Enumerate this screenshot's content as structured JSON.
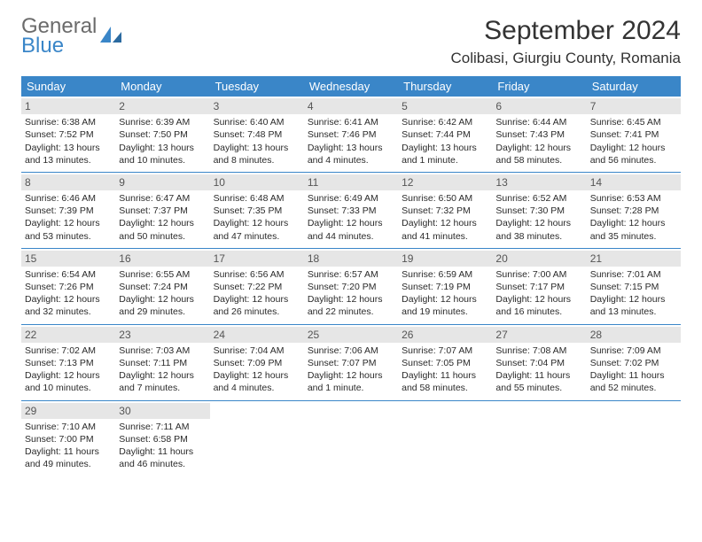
{
  "brand": {
    "line1": "General",
    "line2": "Blue"
  },
  "title": "September 2024",
  "location": "Colibasi, Giurgiu County, Romania",
  "colors": {
    "header_bg": "#3a86c8",
    "header_text": "#ffffff",
    "daynum_bg": "#e6e6e6",
    "week_divider": "#3a86c8",
    "brand_gray": "#6b6b6b",
    "brand_blue": "#3a86c8"
  },
  "dow": [
    "Sunday",
    "Monday",
    "Tuesday",
    "Wednesday",
    "Thursday",
    "Friday",
    "Saturday"
  ],
  "weeks": [
    [
      {
        "n": "1",
        "sr": "Sunrise: 6:38 AM",
        "ss": "Sunset: 7:52 PM",
        "d1": "Daylight: 13 hours",
        "d2": "and 13 minutes."
      },
      {
        "n": "2",
        "sr": "Sunrise: 6:39 AM",
        "ss": "Sunset: 7:50 PM",
        "d1": "Daylight: 13 hours",
        "d2": "and 10 minutes."
      },
      {
        "n": "3",
        "sr": "Sunrise: 6:40 AM",
        "ss": "Sunset: 7:48 PM",
        "d1": "Daylight: 13 hours",
        "d2": "and 8 minutes."
      },
      {
        "n": "4",
        "sr": "Sunrise: 6:41 AM",
        "ss": "Sunset: 7:46 PM",
        "d1": "Daylight: 13 hours",
        "d2": "and 4 minutes."
      },
      {
        "n": "5",
        "sr": "Sunrise: 6:42 AM",
        "ss": "Sunset: 7:44 PM",
        "d1": "Daylight: 13 hours",
        "d2": "and 1 minute."
      },
      {
        "n": "6",
        "sr": "Sunrise: 6:44 AM",
        "ss": "Sunset: 7:43 PM",
        "d1": "Daylight: 12 hours",
        "d2": "and 58 minutes."
      },
      {
        "n": "7",
        "sr": "Sunrise: 6:45 AM",
        "ss": "Sunset: 7:41 PM",
        "d1": "Daylight: 12 hours",
        "d2": "and 56 minutes."
      }
    ],
    [
      {
        "n": "8",
        "sr": "Sunrise: 6:46 AM",
        "ss": "Sunset: 7:39 PM",
        "d1": "Daylight: 12 hours",
        "d2": "and 53 minutes."
      },
      {
        "n": "9",
        "sr": "Sunrise: 6:47 AM",
        "ss": "Sunset: 7:37 PM",
        "d1": "Daylight: 12 hours",
        "d2": "and 50 minutes."
      },
      {
        "n": "10",
        "sr": "Sunrise: 6:48 AM",
        "ss": "Sunset: 7:35 PM",
        "d1": "Daylight: 12 hours",
        "d2": "and 47 minutes."
      },
      {
        "n": "11",
        "sr": "Sunrise: 6:49 AM",
        "ss": "Sunset: 7:33 PM",
        "d1": "Daylight: 12 hours",
        "d2": "and 44 minutes."
      },
      {
        "n": "12",
        "sr": "Sunrise: 6:50 AM",
        "ss": "Sunset: 7:32 PM",
        "d1": "Daylight: 12 hours",
        "d2": "and 41 minutes."
      },
      {
        "n": "13",
        "sr": "Sunrise: 6:52 AM",
        "ss": "Sunset: 7:30 PM",
        "d1": "Daylight: 12 hours",
        "d2": "and 38 minutes."
      },
      {
        "n": "14",
        "sr": "Sunrise: 6:53 AM",
        "ss": "Sunset: 7:28 PM",
        "d1": "Daylight: 12 hours",
        "d2": "and 35 minutes."
      }
    ],
    [
      {
        "n": "15",
        "sr": "Sunrise: 6:54 AM",
        "ss": "Sunset: 7:26 PM",
        "d1": "Daylight: 12 hours",
        "d2": "and 32 minutes."
      },
      {
        "n": "16",
        "sr": "Sunrise: 6:55 AM",
        "ss": "Sunset: 7:24 PM",
        "d1": "Daylight: 12 hours",
        "d2": "and 29 minutes."
      },
      {
        "n": "17",
        "sr": "Sunrise: 6:56 AM",
        "ss": "Sunset: 7:22 PM",
        "d1": "Daylight: 12 hours",
        "d2": "and 26 minutes."
      },
      {
        "n": "18",
        "sr": "Sunrise: 6:57 AM",
        "ss": "Sunset: 7:20 PM",
        "d1": "Daylight: 12 hours",
        "d2": "and 22 minutes."
      },
      {
        "n": "19",
        "sr": "Sunrise: 6:59 AM",
        "ss": "Sunset: 7:19 PM",
        "d1": "Daylight: 12 hours",
        "d2": "and 19 minutes."
      },
      {
        "n": "20",
        "sr": "Sunrise: 7:00 AM",
        "ss": "Sunset: 7:17 PM",
        "d1": "Daylight: 12 hours",
        "d2": "and 16 minutes."
      },
      {
        "n": "21",
        "sr": "Sunrise: 7:01 AM",
        "ss": "Sunset: 7:15 PM",
        "d1": "Daylight: 12 hours",
        "d2": "and 13 minutes."
      }
    ],
    [
      {
        "n": "22",
        "sr": "Sunrise: 7:02 AM",
        "ss": "Sunset: 7:13 PM",
        "d1": "Daylight: 12 hours",
        "d2": "and 10 minutes."
      },
      {
        "n": "23",
        "sr": "Sunrise: 7:03 AM",
        "ss": "Sunset: 7:11 PM",
        "d1": "Daylight: 12 hours",
        "d2": "and 7 minutes."
      },
      {
        "n": "24",
        "sr": "Sunrise: 7:04 AM",
        "ss": "Sunset: 7:09 PM",
        "d1": "Daylight: 12 hours",
        "d2": "and 4 minutes."
      },
      {
        "n": "25",
        "sr": "Sunrise: 7:06 AM",
        "ss": "Sunset: 7:07 PM",
        "d1": "Daylight: 12 hours",
        "d2": "and 1 minute."
      },
      {
        "n": "26",
        "sr": "Sunrise: 7:07 AM",
        "ss": "Sunset: 7:05 PM",
        "d1": "Daylight: 11 hours",
        "d2": "and 58 minutes."
      },
      {
        "n": "27",
        "sr": "Sunrise: 7:08 AM",
        "ss": "Sunset: 7:04 PM",
        "d1": "Daylight: 11 hours",
        "d2": "and 55 minutes."
      },
      {
        "n": "28",
        "sr": "Sunrise: 7:09 AM",
        "ss": "Sunset: 7:02 PM",
        "d1": "Daylight: 11 hours",
        "d2": "and 52 minutes."
      }
    ],
    [
      {
        "n": "29",
        "sr": "Sunrise: 7:10 AM",
        "ss": "Sunset: 7:00 PM",
        "d1": "Daylight: 11 hours",
        "d2": "and 49 minutes."
      },
      {
        "n": "30",
        "sr": "Sunrise: 7:11 AM",
        "ss": "Sunset: 6:58 PM",
        "d1": "Daylight: 11 hours",
        "d2": "and 46 minutes."
      },
      {
        "empty": true
      },
      {
        "empty": true
      },
      {
        "empty": true
      },
      {
        "empty": true
      },
      {
        "empty": true
      }
    ]
  ]
}
